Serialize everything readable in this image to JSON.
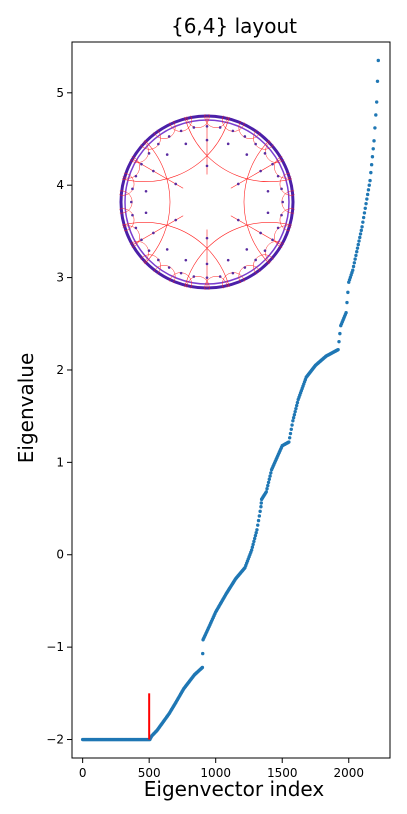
{
  "chart_data": {
    "type": "scatter",
    "title": "{6,4} layout",
    "xlabel": "Eigenvector index",
    "ylabel": "Eigenvalue",
    "xlim": [
      -80,
      2310
    ],
    "ylim": [
      -2.2,
      5.55
    ],
    "x_ticks": [
      0,
      500,
      1000,
      1500,
      2000
    ],
    "y_ticks": [
      -2,
      -1,
      0,
      1,
      2,
      3,
      4,
      5
    ],
    "x_tick_labels": [
      "0",
      "500",
      "1000",
      "1500",
      "2000"
    ],
    "y_tick_labels": [
      "−2",
      "−1",
      "0",
      "1",
      "2",
      "3",
      "4",
      "5"
    ],
    "grid": false,
    "series": [
      {
        "color": "#1f77b4",
        "description_points": [
          [
            0,
            -2.0
          ],
          [
            505,
            -2.0
          ],
          [
            520,
            -1.96
          ],
          [
            560,
            -1.9
          ],
          [
            600,
            -1.82
          ],
          [
            650,
            -1.72
          ],
          [
            700,
            -1.6
          ],
          [
            760,
            -1.45
          ],
          [
            840,
            -1.3
          ],
          [
            900,
            -1.22
          ],
          [
            905,
            -0.92
          ],
          [
            950,
            -0.78
          ],
          [
            1000,
            -0.62
          ],
          [
            1080,
            -0.42
          ],
          [
            1150,
            -0.26
          ],
          [
            1220,
            -0.14
          ],
          [
            1270,
            0.05
          ],
          [
            1310,
            0.27
          ],
          [
            1340,
            0.52
          ],
          [
            1345,
            0.6
          ],
          [
            1380,
            0.68
          ],
          [
            1420,
            0.92
          ],
          [
            1460,
            1.05
          ],
          [
            1500,
            1.18
          ],
          [
            1550,
            1.22
          ],
          [
            1580,
            1.45
          ],
          [
            1620,
            1.68
          ],
          [
            1680,
            1.92
          ],
          [
            1750,
            2.05
          ],
          [
            1830,
            2.15
          ],
          [
            1920,
            2.22
          ],
          [
            1940,
            2.48
          ],
          [
            1980,
            2.62
          ],
          [
            2000,
            2.95
          ],
          [
            2030,
            3.08
          ],
          [
            2060,
            3.28
          ],
          [
            2100,
            3.55
          ],
          [
            2130,
            3.8
          ],
          [
            2160,
            4.05
          ],
          [
            2190,
            4.48
          ],
          [
            2210,
            4.9
          ],
          [
            2222,
            5.35
          ]
        ]
      }
    ],
    "marker_line": {
      "x": 500,
      "y_from": -2.0,
      "y_to": -1.5,
      "color": "#ff0000"
    },
    "inset": {
      "description": "hyperbolic tiling disk",
      "edge_color": "#ff2020",
      "vertex_color": "#5a2ca0"
    }
  }
}
